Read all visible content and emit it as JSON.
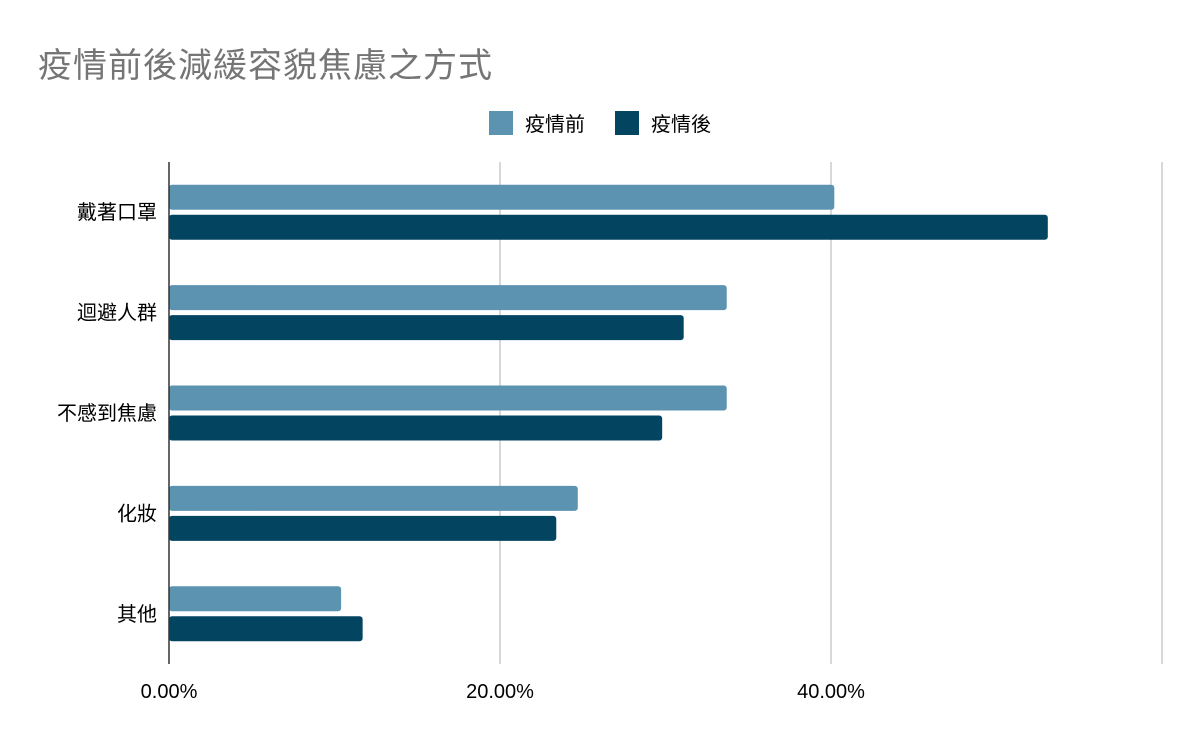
{
  "chart_data": {
    "type": "bar",
    "orientation": "horizontal",
    "title": "疫情前後減緩容貌焦慮之方式",
    "categories": [
      "戴著口罩",
      "迴避人群",
      "不感到焦慮",
      "化妝",
      "其他"
    ],
    "series": [
      {
        "name": "疫情前",
        "color": "#5b93b0",
        "values": [
          40.2,
          33.7,
          33.7,
          24.7,
          10.4
        ]
      },
      {
        "name": "疫情後",
        "color": "#034561",
        "values": [
          53.1,
          31.1,
          29.8,
          23.4,
          11.7
        ]
      }
    ],
    "xlim": [
      0,
      60
    ],
    "x_ticks": [
      {
        "value": 0,
        "label": "0.00%"
      },
      {
        "value": 20,
        "label": "20.00%"
      },
      {
        "value": 40,
        "label": "40.00%"
      }
    ],
    "grid": true,
    "legend_position": "top-center"
  }
}
